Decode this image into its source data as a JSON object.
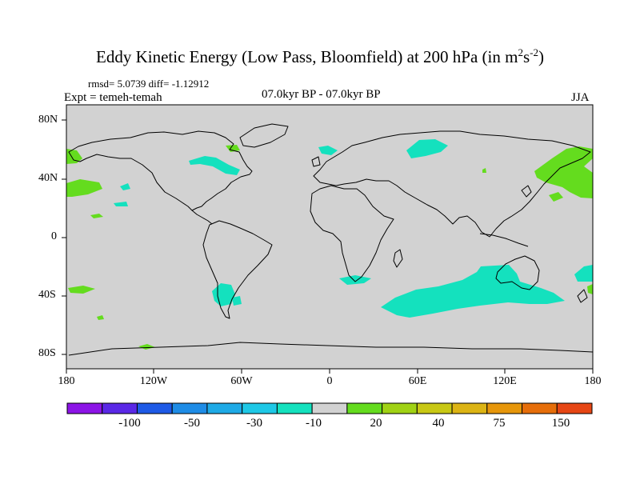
{
  "title": {
    "main": "Eddy Kinetic Energy (Low Pass, Bloomfield) at 200 hPa (in m",
    "sup1": "2",
    "mid": "s",
    "sup2": "-2",
    "end": ")"
  },
  "stats": "rmsd= 5.0739 diff= -1.12912",
  "experiment": "Expt = temeh-temah",
  "period": "07.0kyr BP - 07.0kyr BP",
  "season": "JJA",
  "map": {
    "projection": "cylindrical equidistant",
    "lon_range": [
      -180,
      180
    ],
    "lat_range": [
      -90,
      90
    ],
    "background_color": "#d2d2d2",
    "coastline_color": "#000000",
    "y_ticks": [
      "80N",
      "40N",
      "0",
      "40S",
      "80S"
    ],
    "x_ticks": [
      "180",
      "120W",
      "60W",
      "0",
      "60E",
      "120E",
      "180"
    ]
  },
  "colorbar": {
    "colors": [
      "#8c14e6",
      "#5a28e6",
      "#1e5ae6",
      "#1e8ce6",
      "#1eaae6",
      "#1ec8e6",
      "#14e1be",
      "#d2d2d2",
      "#64dc1e",
      "#a0d214",
      "#c8c814",
      "#dcb414",
      "#e6960a",
      "#e66e0a",
      "#e64614"
    ],
    "labels": [
      "-100",
      "-50",
      "-30",
      "-10",
      "20",
      "40",
      "75",
      "150"
    ]
  }
}
